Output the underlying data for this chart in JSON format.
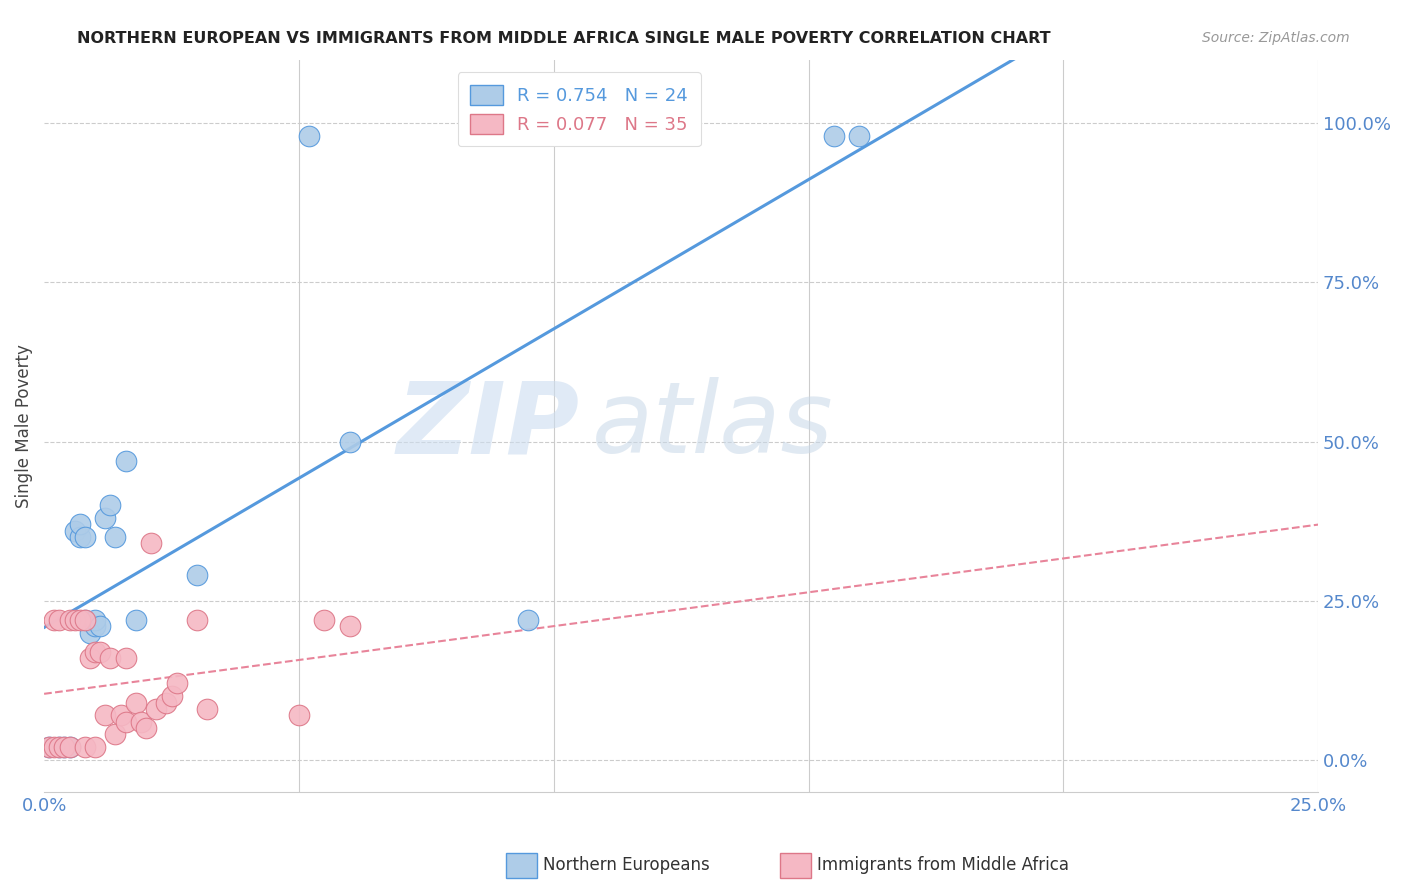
{
  "title": "NORTHERN EUROPEAN VS IMMIGRANTS FROM MIDDLE AFRICA SINGLE MALE POVERTY CORRELATION CHART",
  "source": "Source: ZipAtlas.com",
  "ylabel": "Single Male Poverty",
  "ylabel_right_ticks": [
    "100.0%",
    "75.0%",
    "50.0%",
    "25.0%",
    "0.0%"
  ],
  "ylabel_right_vals": [
    1.0,
    0.75,
    0.5,
    0.25,
    0.0
  ],
  "legend_blue_r": "R = 0.754",
  "legend_blue_n": "N = 24",
  "legend_pink_r": "R = 0.077",
  "legend_pink_n": "N = 35",
  "legend_blue_label": "Northern Europeans",
  "legend_pink_label": "Immigrants from Middle Africa",
  "blue_color": "#aecce8",
  "pink_color": "#f5b8c4",
  "line_blue_color": "#5599dd",
  "line_pink_color": "#e8849a",
  "watermark_zip": "ZIP",
  "watermark_atlas": "atlas",
  "blue_x": [
    0.001,
    0.003,
    0.004,
    0.005,
    0.006,
    0.007,
    0.007,
    0.008,
    0.008,
    0.009,
    0.01,
    0.01,
    0.011,
    0.012,
    0.013,
    0.014,
    0.016,
    0.018,
    0.03,
    0.052,
    0.06,
    0.095,
    0.155,
    0.16
  ],
  "blue_y": [
    0.02,
    0.02,
    0.02,
    0.02,
    0.36,
    0.35,
    0.37,
    0.35,
    0.22,
    0.2,
    0.21,
    0.22,
    0.21,
    0.38,
    0.4,
    0.35,
    0.47,
    0.22,
    0.29,
    0.98,
    0.5,
    0.22,
    0.98,
    0.98
  ],
  "pink_x": [
    0.001,
    0.002,
    0.002,
    0.003,
    0.003,
    0.004,
    0.005,
    0.005,
    0.006,
    0.007,
    0.008,
    0.008,
    0.009,
    0.01,
    0.01,
    0.011,
    0.012,
    0.013,
    0.014,
    0.015,
    0.016,
    0.016,
    0.018,
    0.019,
    0.02,
    0.021,
    0.022,
    0.024,
    0.025,
    0.026,
    0.03,
    0.032,
    0.05,
    0.055,
    0.06
  ],
  "pink_y": [
    0.02,
    0.02,
    0.22,
    0.02,
    0.22,
    0.02,
    0.22,
    0.02,
    0.22,
    0.22,
    0.22,
    0.02,
    0.16,
    0.17,
    0.02,
    0.17,
    0.07,
    0.16,
    0.04,
    0.07,
    0.16,
    0.06,
    0.09,
    0.06,
    0.05,
    0.34,
    0.08,
    0.09,
    0.1,
    0.12,
    0.22,
    0.08,
    0.07,
    0.22,
    0.21
  ],
  "xmin": 0.0,
  "xmax": 0.25,
  "ymin": -0.05,
  "ymax": 1.1
}
